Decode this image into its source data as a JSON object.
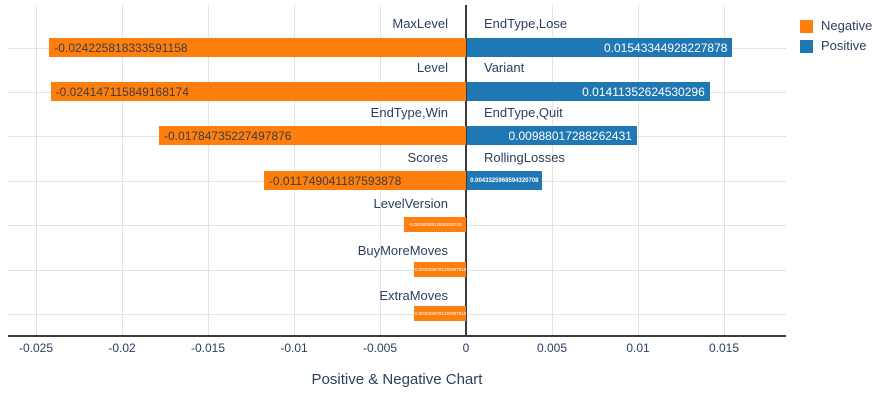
{
  "chart_data": {
    "type": "bar",
    "orientation": "horizontal",
    "title": "Positive & Negative Chart",
    "colors": {
      "negative": "#ff7f0e",
      "positive": "#1f77b4"
    },
    "xlim": [
      -0.0266,
      0.0186
    ],
    "grid": true,
    "legend_position": "top-right",
    "xticks": [
      -0.025,
      -0.02,
      -0.015,
      -0.01,
      -0.005,
      0,
      0.005,
      0.01,
      0.015
    ],
    "xtick_labels": [
      "-0.025",
      "-0.02",
      "-0.015",
      "-0.01",
      "-0.005",
      "0",
      "0.005",
      "0.01",
      "0.015"
    ],
    "rows": [
      {
        "negative": {
          "label": "MaxLevel",
          "value": -0.024225818333591158,
          "text": "-0.024225818333591158"
        },
        "positive": {
          "label": "EndType,Lose",
          "value": 0.01543344928227878,
          "text": "0.01543344928227878"
        }
      },
      {
        "negative": {
          "label": "Level",
          "value": -0.024147115849168174,
          "text": "-0.024147115849168174"
        },
        "positive": {
          "label": "Variant",
          "value": 0.01411352624530296,
          "text": "0.01411352624530296"
        }
      },
      {
        "negative": {
          "label": "EndType,Win",
          "value": -0.01784735227497876,
          "text": "-0.01784735227497876"
        },
        "positive": {
          "label": "EndType,Quit",
          "value": 0.00988017288262431,
          "text": "0.00988017288262431"
        }
      },
      {
        "negative": {
          "label": "Scores",
          "value": -0.011749041187593878,
          "text": "-0.011749041187593878"
        },
        "positive": {
          "label": "RollingLosses",
          "value": 0.004332596859432071,
          "text": "0.0043325968594320708"
        }
      },
      {
        "negative": {
          "label": "LevelVersion",
          "value": -0.0035830812938208744,
          "text": "-0.0035830812938208743"
        }
      },
      {
        "negative": {
          "label": "BuyMoreMoves",
          "value": -0.0030458781293997515,
          "text": "-0.0030458781293997515"
        }
      },
      {
        "negative": {
          "label": "ExtraMoves",
          "value": -0.0030458781293997515,
          "text": "-0.0030458781293997515"
        }
      }
    ]
  },
  "legend": {
    "items": [
      {
        "label": "Negative",
        "color": "#ff7f0e"
      },
      {
        "label": "Positive",
        "color": "#1f77b4"
      }
    ]
  }
}
